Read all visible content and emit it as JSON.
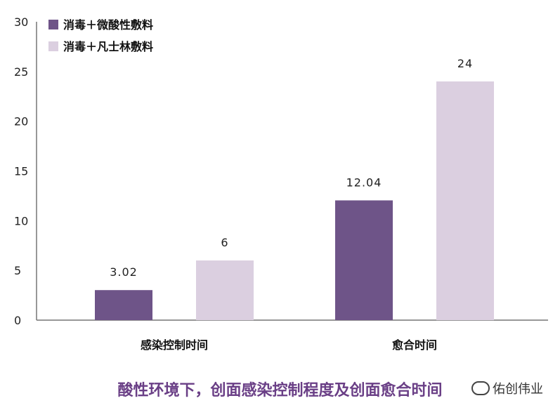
{
  "chart_data": {
    "type": "bar",
    "categories": [
      "感染控制时间",
      "愈合时间"
    ],
    "series": [
      {
        "name": "消毒＋微酸性敷料",
        "values": [
          3.02,
          12.04
        ],
        "labels": [
          "3.02",
          "12.04"
        ],
        "color": "#6e5488"
      },
      {
        "name": "消毒＋凡士林敷料",
        "values": [
          6,
          24
        ],
        "labels": [
          "6",
          "24"
        ],
        "color": "#dbcfe0"
      }
    ],
    "title": "",
    "xlabel": "",
    "ylabel": "",
    "ylim": [
      0,
      30
    ],
    "yticks": [
      0,
      5,
      10,
      15,
      20,
      25,
      30
    ],
    "grid": false,
    "legend_position": "top-left"
  },
  "caption": "酸性环境下，创面感染控制程度及创面愈合时间",
  "watermark": "佑创伟业",
  "watermark_icon": "wechat-icon"
}
